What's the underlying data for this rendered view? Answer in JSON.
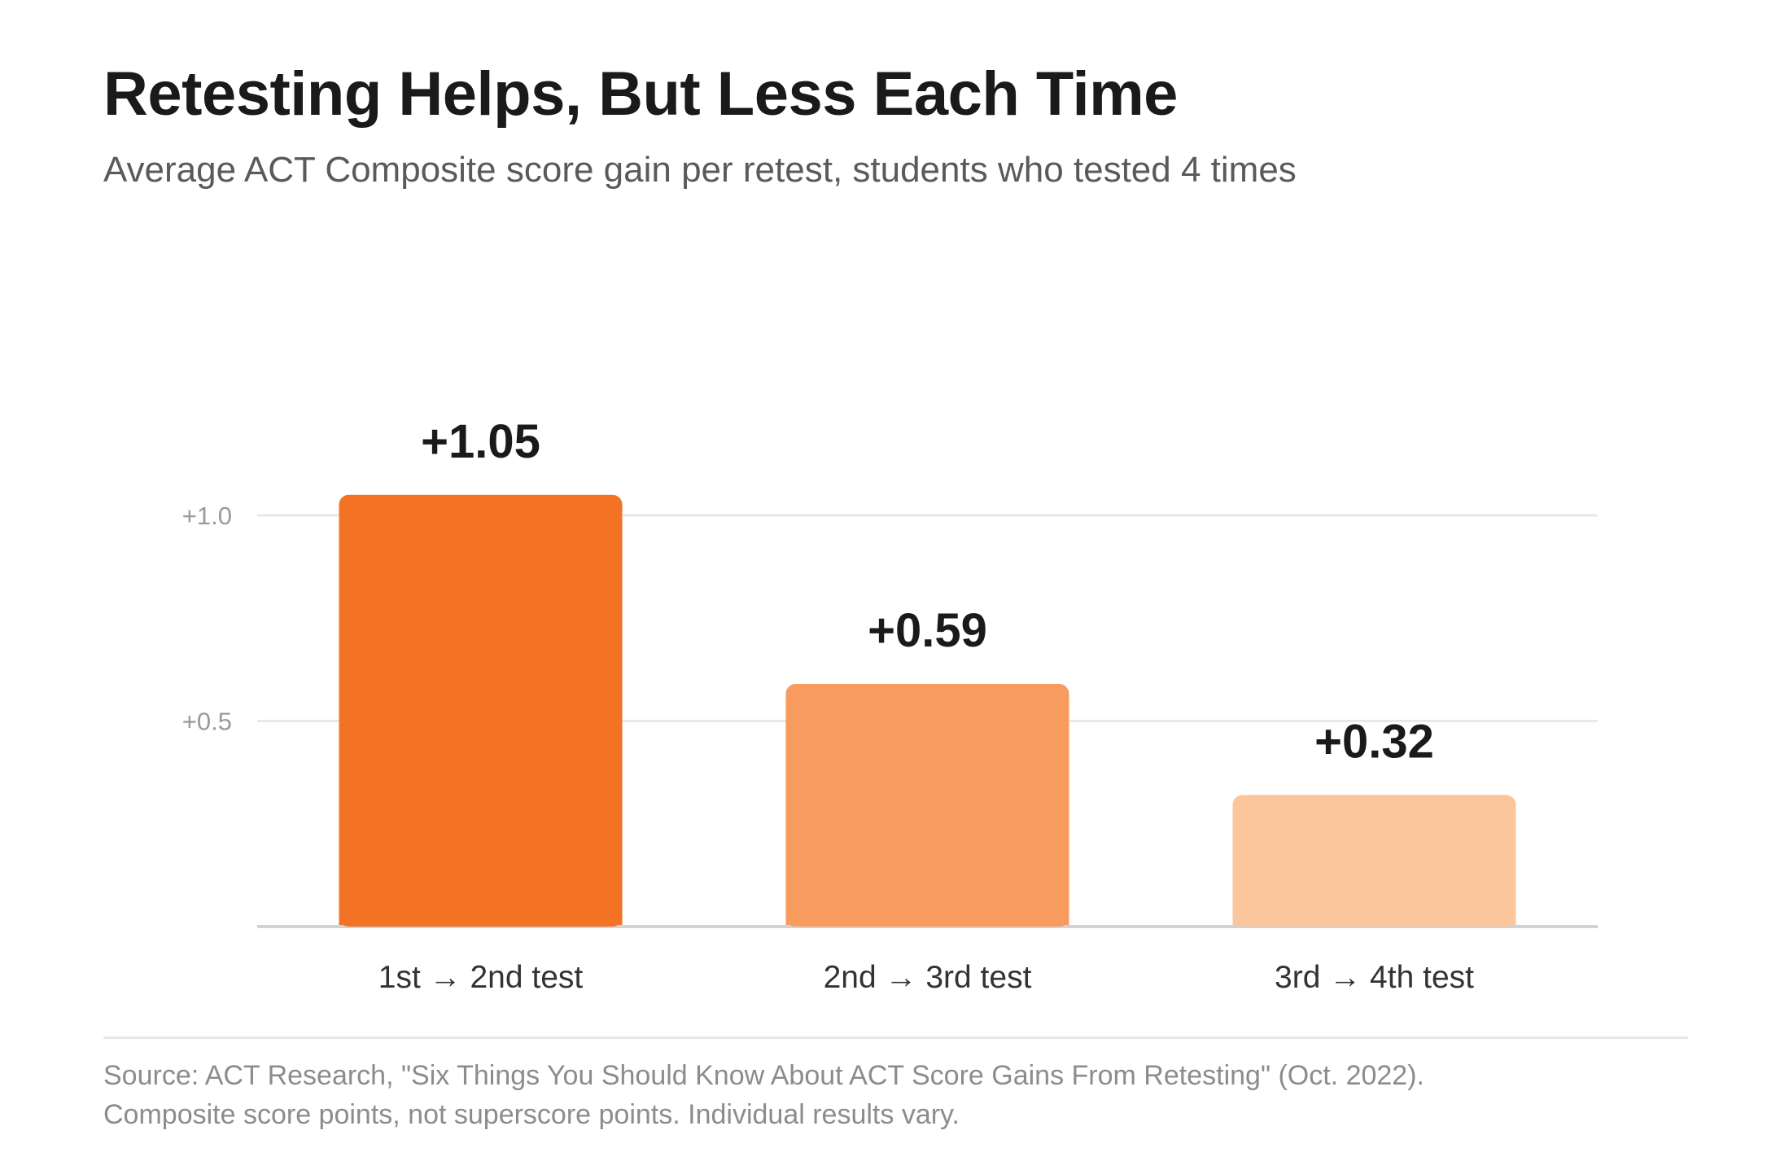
{
  "title": "Retesting Helps, But Less Each Time",
  "subtitle": "Average ACT Composite score gain per retest, students who tested 4 times",
  "footer": {
    "source": "Source: ACT Research, \"Six Things You Should Know About ACT Score Gains From Retesting\" (Oct. 2022).",
    "note": "Composite score points, not superscore points. Individual results vary."
  },
  "chart_data": {
    "type": "bar",
    "categories": [
      "1st → 2nd test",
      "2nd → 3rd test",
      "3rd → 4th test"
    ],
    "values": [
      1.05,
      0.59,
      0.32
    ],
    "data_labels": [
      "+1.05",
      "+0.59",
      "+0.32"
    ],
    "bar_colors": [
      "#f37224",
      "#f89b5e",
      "#fbc69c"
    ],
    "yticks": [
      0.5,
      1.0
    ],
    "ytick_labels": [
      "+0.5",
      "+1.0"
    ],
    "ylim": [
      0,
      1.15
    ],
    "grid": true,
    "legend": "none",
    "colors": {
      "grid": "#e8e8e8",
      "baseline": "#d2d2d2",
      "tick_label": "#9a9a9a",
      "category_label": "#333333",
      "data_label": "#1a1a1a"
    }
  }
}
